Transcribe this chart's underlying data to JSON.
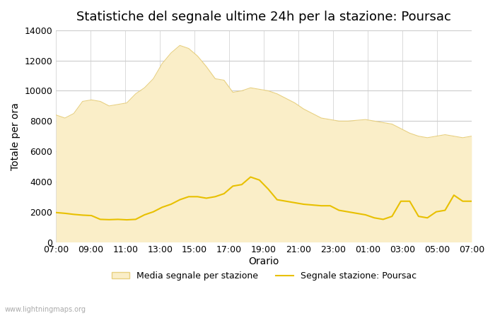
{
  "title": "Statistiche del segnale ultime 24h per la stazione: Poursac",
  "xlabel": "Orario",
  "ylabel": "Totale per ora",
  "watermark": "www.lightningmaps.org",
  "ylim": [
    0,
    14000
  ],
  "yticks": [
    0,
    2000,
    4000,
    6000,
    8000,
    10000,
    12000,
    14000
  ],
  "x_labels": [
    "07:00",
    "09:00",
    "11:00",
    "13:00",
    "15:00",
    "17:00",
    "19:00",
    "21:00",
    "23:00",
    "01:00",
    "03:00",
    "05:00",
    "07:00"
  ],
  "fill_color": "#faeec8",
  "fill_edge_color": "#e8d080",
  "line_color": "#e8c000",
  "background_color": "#ffffff",
  "grid_color": "#cccccc",
  "area_data": [
    8400,
    8200,
    8500,
    9300,
    9400,
    9300,
    9000,
    9100,
    9200,
    9800,
    10200,
    10800,
    11800,
    12500,
    13000,
    12800,
    12300,
    11600,
    10800,
    10700,
    9900,
    10000,
    10200,
    10100,
    10000,
    9800,
    9500,
    9200,
    8800,
    8500,
    8200,
    8100,
    8000,
    8000,
    8050,
    8100,
    8000,
    7900,
    7800,
    7500,
    7200,
    7000,
    6900,
    7000,
    7100,
    7000,
    6900,
    7000
  ],
  "line_data": [
    1950,
    1900,
    1830,
    1780,
    1750,
    1500,
    1480,
    1500,
    1470,
    1500,
    1800,
    2000,
    2300,
    2500,
    2800,
    3000,
    3000,
    2900,
    3000,
    3200,
    3700,
    3800,
    4300,
    4100,
    3500,
    2800,
    2700,
    2600,
    2500,
    2450,
    2400,
    2400,
    2100,
    2000,
    1900,
    1800,
    1600,
    1500,
    1700,
    2700,
    2700,
    1700,
    1600,
    2000,
    2100,
    3100,
    2700,
    2700
  ],
  "n_points": 48,
  "legend_fill_label": "Media segnale per stazione",
  "legend_line_label": "Segnale stazione: Poursac"
}
